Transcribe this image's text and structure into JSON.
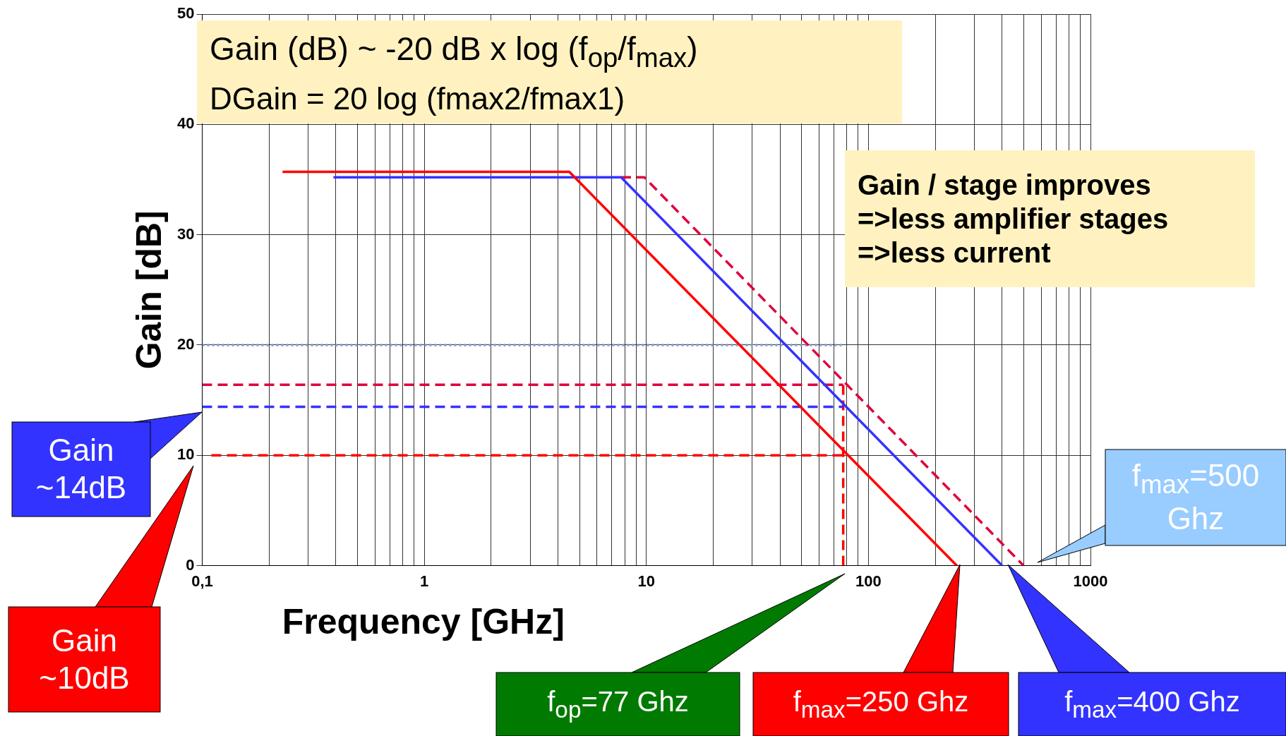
{
  "chart_data": {
    "type": "line",
    "xlabel": "Frequency [GHz]",
    "ylabel": "Gain [dB]",
    "log": "x",
    "grid": true,
    "legend": false,
    "marker": "none",
    "xlim": [
      0.1,
      1000
    ],
    "ylim": [
      0,
      50
    ],
    "xticks": [
      {
        "value": 0.1,
        "label": "0,1"
      },
      {
        "value": 0.2,
        "label": null
      },
      {
        "value": 0.3,
        "label": null
      },
      {
        "value": 0.4,
        "label": null
      },
      {
        "value": 0.5,
        "label": null
      },
      {
        "value": 0.6,
        "label": null
      },
      {
        "value": 0.7,
        "label": null
      },
      {
        "value": 0.8,
        "label": null
      },
      {
        "value": 0.9,
        "label": null
      },
      1,
      {
        "value": 2,
        "label": null
      },
      {
        "value": 3,
        "label": null
      },
      {
        "value": 4,
        "label": null
      },
      {
        "value": 5,
        "label": null
      },
      {
        "value": 6,
        "label": null
      },
      {
        "value": 7,
        "label": null
      },
      {
        "value": 8,
        "label": null
      },
      {
        "value": 9,
        "label": null
      },
      10,
      {
        "value": 20,
        "label": null
      },
      {
        "value": 30,
        "label": null
      },
      {
        "value": 40,
        "label": null
      },
      {
        "value": 50,
        "label": null
      },
      {
        "value": 60,
        "label": null
      },
      {
        "value": 70,
        "label": null
      },
      {
        "value": 80,
        "label": null
      },
      {
        "value": 90,
        "label": null
      },
      100,
      {
        "value": 200,
        "label": null
      },
      {
        "value": 300,
        "label": null
      },
      {
        "value": 400,
        "label": null
      },
      {
        "value": 500,
        "label": null
      },
      {
        "value": 600,
        "label": null
      },
      {
        "value": 700,
        "label": null
      },
      {
        "value": 800,
        "label": null
      },
      {
        "value": 900,
        "label": null
      },
      1000
    ],
    "yticks": [
      0,
      10,
      20,
      30,
      40,
      50
    ],
    "series": [
      {
        "color": "#ff0000",
        "line_style": "solid",
        "x": [
          0.23,
          4.5,
          250
        ],
        "values": [
          35.7,
          35.7,
          0
        ]
      },
      {
        "color": "#3333ff",
        "line_style": "solid",
        "x": [
          0.39,
          7.7,
          400
        ],
        "values": [
          35.2,
          35.2,
          0
        ]
      },
      {
        "color": "#e0003c",
        "line_style": "dashed",
        "x": [
          7.7,
          9.8,
          500
        ],
        "values": [
          35.2,
          35.2,
          0
        ]
      },
      {
        "color": "#7f9fd0",
        "line_style": "dotted",
        "x": [
          0.1,
          77
        ],
        "values": [
          20,
          20
        ]
      },
      {
        "color": "#e0003c",
        "line_style": "dashed",
        "x": [
          0.1,
          77
        ],
        "values": [
          16.4,
          16.4
        ]
      },
      {
        "color": "#3333ff",
        "line_style": "dashed",
        "x": [
          0.1,
          77
        ],
        "values": [
          14.4,
          14.4
        ]
      },
      {
        "color": "#ff0000",
        "line_style": "dashed",
        "x": [
          0.11,
          77
        ],
        "values": [
          10,
          10
        ]
      },
      {
        "color": "#ff0000",
        "line_style": "dashed",
        "x": [
          77,
          77
        ],
        "values": [
          0,
          16.4
        ]
      }
    ],
    "annotations": [
      "Gain (dB) ~ -20 dB x log (f$_{op}$/f$_{max}$)",
      "DGain = 20 log (fmax2/fmax1)",
      "Gain / stage improves\n=>less amplifier stages\n=>less current",
      "Gain ~14dB",
      "Gain ~10dB",
      "f$_{op}$=77 Ghz",
      "f$_{max}$=250 Ghz",
      "f$_{max}$=400 Ghz",
      "f$_{max}$=500 Ghz"
    ]
  }
}
